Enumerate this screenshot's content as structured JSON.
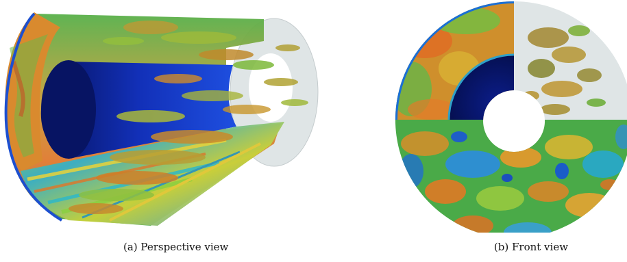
{
  "figure": {
    "subfigures": [
      {
        "id": "a",
        "caption": "(a) Perspective view"
      },
      {
        "id": "b",
        "caption": "(b) Front view"
      }
    ]
  },
  "colors": {
    "inner_cylinder": "#0b1a7a",
    "inner_cylinder_light": "#1e3fd0",
    "field_low": "#2a6fd6",
    "field_mid": "#3fb84a",
    "field_high": "#d9962a",
    "field_peak": "#c55a1e",
    "isosurface": "#a79a3c",
    "isosurface_alt": "#5da83a",
    "background_plane": "#dfe5e6"
  }
}
